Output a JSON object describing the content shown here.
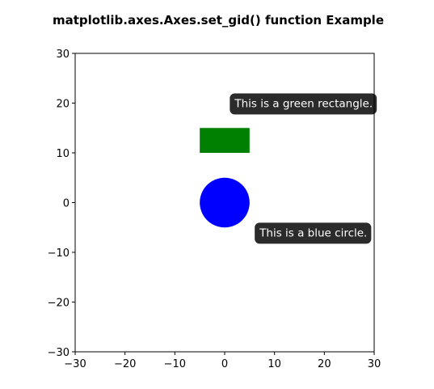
{
  "chart_data": {
    "type": "scatter",
    "title": "matplotlib.axes.Axes.set_gid() function Example",
    "xlabel": "",
    "ylabel": "",
    "xlim": [
      -30,
      30
    ],
    "ylim": [
      -30,
      30
    ],
    "xticks": [
      -30,
      -20,
      -10,
      0,
      10,
      20,
      30
    ],
    "yticks": [
      -30,
      -20,
      -10,
      0,
      10,
      20,
      30
    ],
    "xtick_labels": [
      "−30",
      "−20",
      "−10",
      "0",
      "10",
      "20",
      "30"
    ],
    "ytick_labels": [
      "−30",
      "−20",
      "−10",
      "0",
      "10",
      "20",
      "30"
    ],
    "grid": false,
    "shapes": [
      {
        "kind": "rectangle",
        "x": -5,
        "y": 10,
        "width": 10,
        "height": 5,
        "color": "#008000"
      },
      {
        "kind": "circle",
        "cx": 0,
        "cy": 0,
        "r": 5,
        "color": "#0000ff"
      }
    ],
    "annotations": [
      {
        "text": "This is a green rectangle.",
        "x": 2,
        "y": 20,
        "box_color": "#2b2b2b",
        "text_color": "#ffffff"
      },
      {
        "text": "This is a blue circle.",
        "x": 7,
        "y": -6,
        "box_color": "#2b2b2b",
        "text_color": "#ffffff"
      }
    ]
  }
}
